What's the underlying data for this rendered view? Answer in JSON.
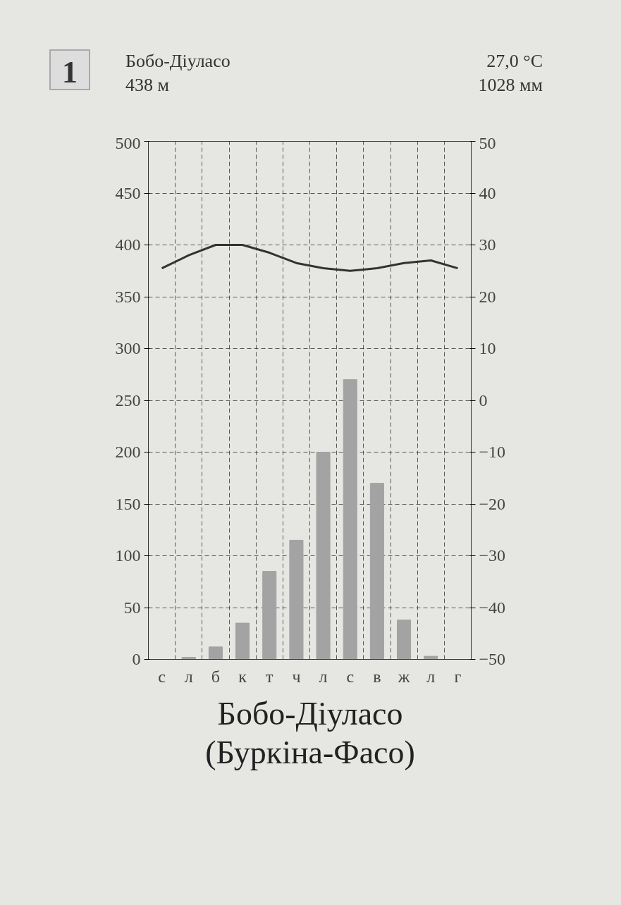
{
  "chart_data": {
    "type": "bar",
    "title": "Бобо-Діуласо\n(Буркіна-Фасо)",
    "annotations": [
      "1",
      "Бобо-Діуласо",
      "438 м",
      "27,0 °C",
      "1028 мм"
    ],
    "categories": [
      "с",
      "л",
      "б",
      "к",
      "т",
      "ч",
      "л",
      "с",
      "в",
      "ж",
      "л",
      "г"
    ],
    "series": [
      {
        "color": "#a3a3a3",
        "values": [
          0,
          2,
          12,
          35,
          85,
          115,
          200,
          270,
          170,
          38,
          3,
          0
        ]
      },
      {
        "type": "line",
        "axis": "y2",
        "color": "#333333",
        "values": [
          25.5,
          28,
          30,
          30,
          28.5,
          26.5,
          25.5,
          25,
          25.5,
          26.5,
          27,
          25.5
        ]
      }
    ],
    "ylim": [
      0,
      500
    ],
    "yticks": [
      0,
      50,
      100,
      150,
      200,
      250,
      300,
      350,
      400,
      450,
      500
    ],
    "y2lim": [
      -50,
      50
    ],
    "y2ticks": [
      -50,
      -40,
      -30,
      -20,
      -10,
      0,
      10,
      20,
      30,
      40,
      50
    ],
    "grid": true,
    "line_style": "solid",
    "marker": "none"
  }
}
